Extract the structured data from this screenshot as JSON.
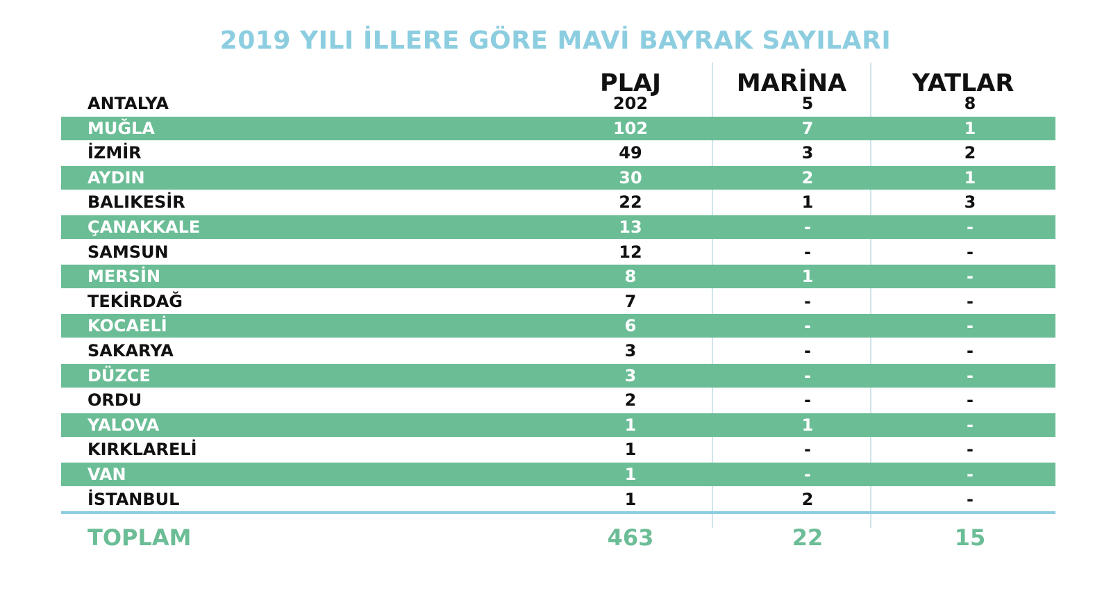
{
  "title": "2019 YILI İLLERE GÖRE MAVİ BAYRAK SAYILARI",
  "colors": {
    "title": "#8ccde0",
    "band": "#6bbd96",
    "total": "#6bbd96",
    "rule": "#8ccde0"
  },
  "headers": {
    "plaj": "PLAJ",
    "marina": "MARİNA",
    "yatlar": "YATLAR"
  },
  "rows": [
    {
      "province": "ANTALYA",
      "plaj": "202",
      "marina": "5",
      "yatlar": "8"
    },
    {
      "province": "MUĞLA",
      "plaj": "102",
      "marina": "7",
      "yatlar": "1"
    },
    {
      "province": "İZMİR",
      "plaj": "49",
      "marina": "3",
      "yatlar": "2"
    },
    {
      "province": "AYDIN",
      "plaj": "30",
      "marina": "2",
      "yatlar": "1"
    },
    {
      "province": "BALIKESİR",
      "plaj": "22",
      "marina": "1",
      "yatlar": "3"
    },
    {
      "province": "ÇANAKKALE",
      "plaj": "13",
      "marina": "-",
      "yatlar": "-"
    },
    {
      "province": "SAMSUN",
      "plaj": "12",
      "marina": "-",
      "yatlar": "-"
    },
    {
      "province": "MERSİN",
      "plaj": "8",
      "marina": "1",
      "yatlar": "-"
    },
    {
      "province": "TEKİRDAĞ",
      "plaj": "7",
      "marina": "-",
      "yatlar": "-"
    },
    {
      "province": "KOCAELİ",
      "plaj": "6",
      "marina": "-",
      "yatlar": "-"
    },
    {
      "province": "SAKARYA",
      "plaj": "3",
      "marina": "-",
      "yatlar": "-"
    },
    {
      "province": "DÜZCE",
      "plaj": "3",
      "marina": "-",
      "yatlar": "-"
    },
    {
      "province": "ORDU",
      "plaj": "2",
      "marina": "-",
      "yatlar": "-"
    },
    {
      "province": "YALOVA",
      "plaj": "1",
      "marina": "1",
      "yatlar": "-"
    },
    {
      "province": "KIRKLARELİ",
      "plaj": "1",
      "marina": "-",
      "yatlar": "-"
    },
    {
      "province": "VAN",
      "plaj": "1",
      "marina": "-",
      "yatlar": "-"
    },
    {
      "province": "İSTANBUL",
      "plaj": "1",
      "marina": "2",
      "yatlar": "-"
    }
  ],
  "total": {
    "label": "TOPLAM",
    "plaj": "463",
    "marina": "22",
    "yatlar": "15"
  },
  "chart_data": {
    "type": "table",
    "title": "2019 YILI İLLERE GÖRE MAVİ BAYRAK SAYILARI",
    "columns": [
      "",
      "PLAJ",
      "MARİNA",
      "YATLAR"
    ],
    "rows": [
      [
        "ANTALYA",
        "202",
        "5",
        "8"
      ],
      [
        "MUĞLA",
        "102",
        "7",
        "1"
      ],
      [
        "İZMİR",
        "49",
        "3",
        "2"
      ],
      [
        "AYDIN",
        "30",
        "2",
        "1"
      ],
      [
        "BALIKESİR",
        "22",
        "1",
        "3"
      ],
      [
        "ÇANAKKALE",
        "13",
        "-",
        "-"
      ],
      [
        "SAMSUN",
        "12",
        "-",
        "-"
      ],
      [
        "MERSİN",
        "8",
        "1",
        "-"
      ],
      [
        "TEKİRDAĞ",
        "7",
        "-",
        "-"
      ],
      [
        "KOCAELİ",
        "6",
        "-",
        "-"
      ],
      [
        "SAKARYA",
        "3",
        "-",
        "-"
      ],
      [
        "DÜZCE",
        "3",
        "-",
        "-"
      ],
      [
        "ORDU",
        "2",
        "-",
        "-"
      ],
      [
        "YALOVA",
        "1",
        "1",
        "-"
      ],
      [
        "KIRKLARELİ",
        "1",
        "-",
        "-"
      ],
      [
        "VAN",
        "1",
        "-",
        "-"
      ],
      [
        "İSTANBUL",
        "1",
        "2",
        "-"
      ]
    ],
    "totals": [
      "TOPLAM",
      "463",
      "22",
      "15"
    ]
  }
}
